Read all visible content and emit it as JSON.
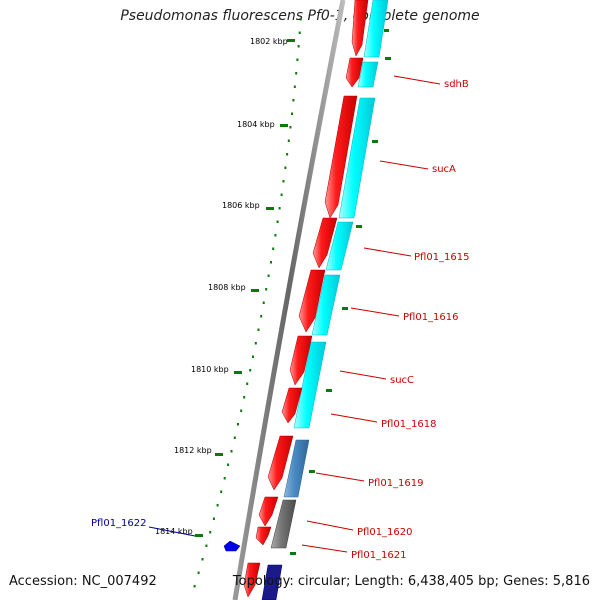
{
  "title": "Pseudomonas fluorescens Pf0-1, complete genome",
  "footer": {
    "accession": "Accession: NC_007492",
    "topology": "Topology: circular; Length: 6,438,405 bp; Genes: 5,816"
  },
  "ticks": [
    "1802 kbp",
    "1804 kbp",
    "1806 kbp",
    "1808 kbp",
    "1810 kbp",
    "1812 kbp",
    "1814 kbp"
  ],
  "genes": [
    {
      "label": "sdhB",
      "color": "#cc0000"
    },
    {
      "label": "sucA",
      "color": "#cc0000"
    },
    {
      "label": "Pfl01_1615",
      "color": "#cc0000"
    },
    {
      "label": "Pfl01_1616",
      "color": "#cc0000"
    },
    {
      "label": "sucC",
      "color": "#cc0000"
    },
    {
      "label": "Pfl01_1618",
      "color": "#cc0000"
    },
    {
      "label": "Pfl01_1619",
      "color": "#cc0000"
    },
    {
      "label": "Pfl01_1620",
      "color": "#cc0000"
    },
    {
      "label": "Pfl01_1621",
      "color": "#cc0000"
    },
    {
      "label": "Pfl01_1622",
      "color": "#000099"
    }
  ],
  "colors": {
    "forward_gene": "#ff0000",
    "cog_cyan": "#00ffff",
    "cog_steelblue": "#4a8bc4",
    "cog_gray": "#777777",
    "reverse_gene": "#0000cc",
    "tick_green": "#008000",
    "backbone": "#777777"
  }
}
